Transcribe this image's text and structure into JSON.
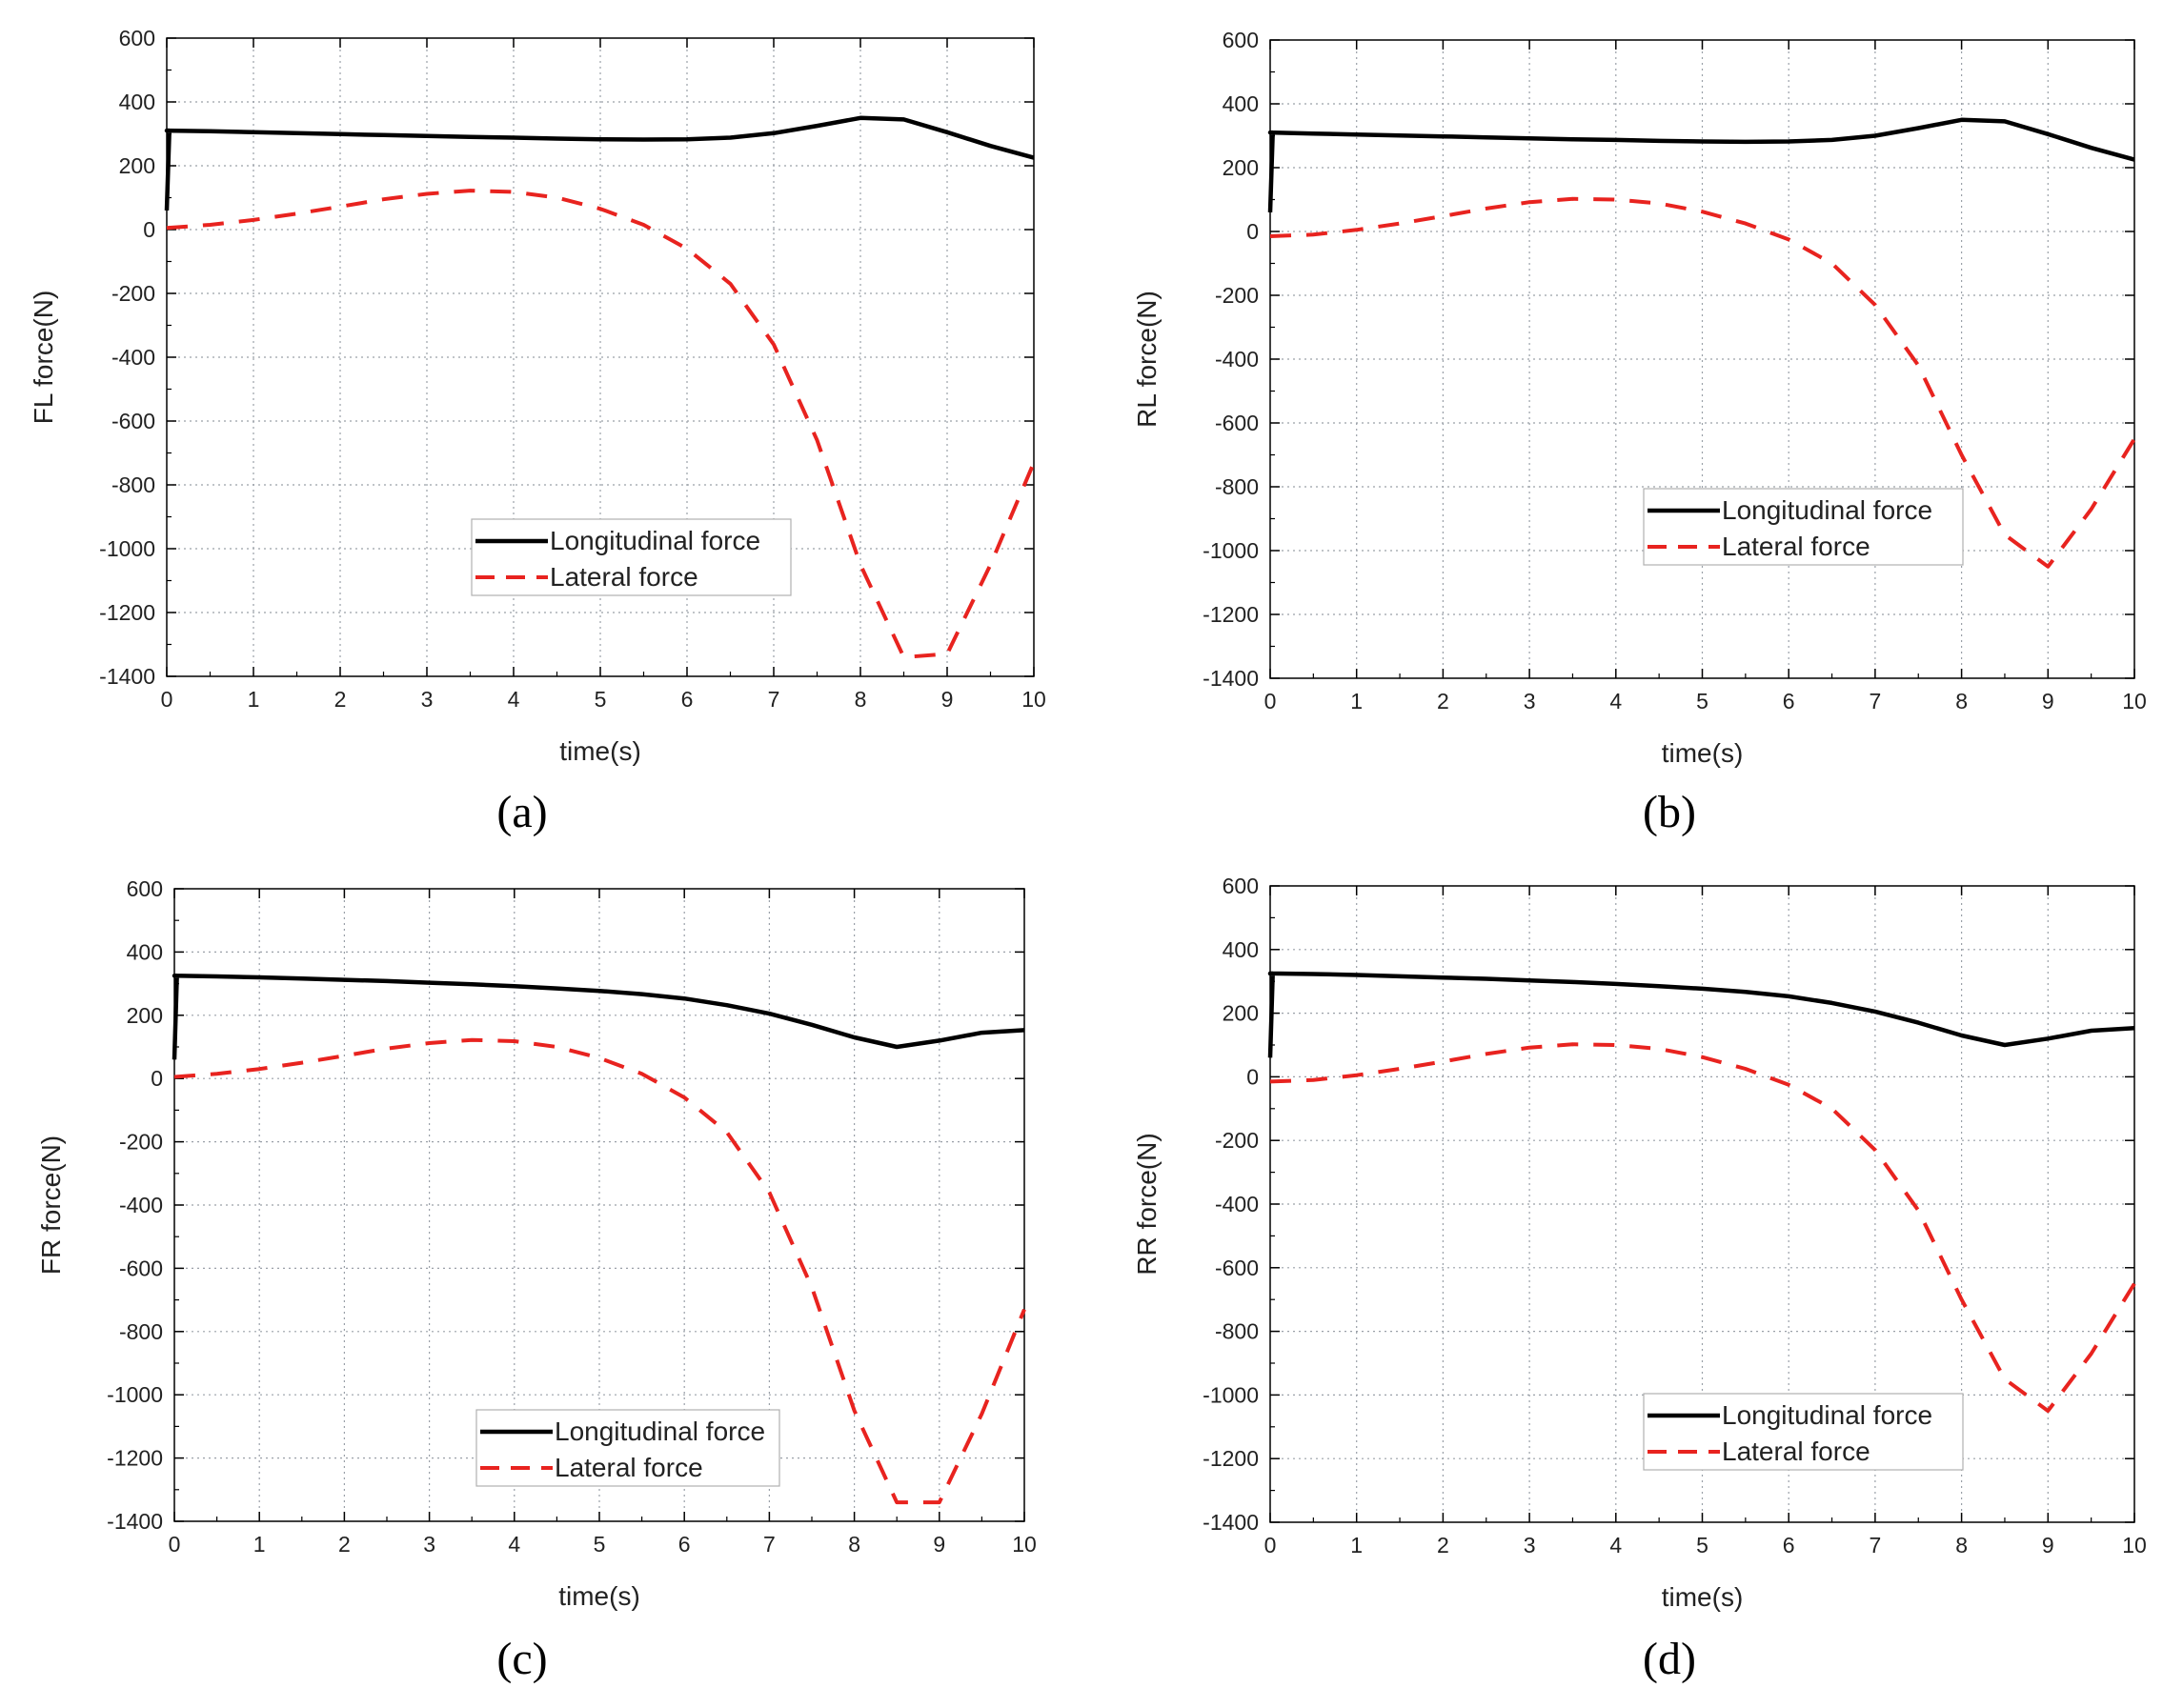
{
  "figure": {
    "panels": [
      "(a)",
      "(b)",
      "(c)",
      "(d)"
    ]
  },
  "colors": {
    "longitudinal": "#000000",
    "lateral": "#e8231f",
    "grid": "#9aa0a8",
    "axis": "#000000"
  },
  "chart_data": [
    {
      "type": "line",
      "panel": "(a)",
      "title": "",
      "xlabel": "time(s)",
      "ylabel": "FL force(N)",
      "xlim": [
        0,
        10
      ],
      "ylim": [
        -1400,
        600
      ],
      "xticks": [
        0,
        1,
        2,
        3,
        4,
        5,
        6,
        7,
        8,
        9,
        10
      ],
      "yticks": [
        600,
        400,
        200,
        0,
        -200,
        -400,
        -600,
        -800,
        -1000,
        -1200,
        -1400
      ],
      "grid": true,
      "legend_position": "center",
      "x": [
        0,
        0.5,
        1,
        1.5,
        2,
        2.5,
        3,
        3.5,
        4,
        4.5,
        5,
        5.5,
        6,
        6.5,
        7,
        7.5,
        8,
        8.5,
        9,
        9.5,
        10
      ],
      "series": [
        {
          "name": "Longitudinal force",
          "style": "solid",
          "x0": 0,
          "y0": 60,
          "values": [
            310,
            308,
            305,
            302,
            299,
            296,
            293,
            290,
            288,
            285,
            283,
            282,
            283,
            288,
            302,
            325,
            350,
            345,
            305,
            262,
            225
          ]
        },
        {
          "name": "Lateral force",
          "style": "dashed",
          "values": [
            5,
            15,
            30,
            50,
            72,
            95,
            112,
            122,
            118,
            100,
            65,
            15,
            -60,
            -170,
            -360,
            -660,
            -1050,
            -1340,
            -1330,
            -1050,
            -730
          ]
        }
      ]
    },
    {
      "type": "line",
      "panel": "(b)",
      "title": "",
      "xlabel": "time(s)",
      "ylabel": "RL force(N)",
      "xlim": [
        0,
        10
      ],
      "ylim": [
        -1400,
        600
      ],
      "xticks": [
        0,
        1,
        2,
        3,
        4,
        5,
        6,
        7,
        8,
        9,
        10
      ],
      "yticks": [
        600,
        400,
        200,
        0,
        -200,
        -400,
        -600,
        -800,
        -1000,
        -1200,
        -1400
      ],
      "grid": true,
      "legend_position": "center-right",
      "x": [
        0,
        0.5,
        1,
        1.5,
        2,
        2.5,
        3,
        3.5,
        4,
        4.5,
        5,
        5.5,
        6,
        6.5,
        7,
        7.5,
        8,
        8.5,
        9,
        9.5,
        10
      ],
      "series": [
        {
          "name": "Longitudinal force",
          "style": "solid",
          "x0": 0,
          "y0": 60,
          "values": [
            310,
            307,
            304,
            301,
            298,
            295,
            292,
            289,
            287,
            284,
            282,
            281,
            282,
            287,
            300,
            324,
            350,
            345,
            305,
            262,
            225
          ]
        },
        {
          "name": "Lateral force",
          "style": "dashed",
          "values": [
            -15,
            -10,
            5,
            25,
            48,
            72,
            92,
            102,
            100,
            88,
            62,
            25,
            -25,
            -100,
            -230,
            -420,
            -700,
            -950,
            -1050,
            -870,
            -650
          ]
        }
      ]
    },
    {
      "type": "line",
      "panel": "(c)",
      "title": "",
      "xlabel": "time(s)",
      "ylabel": "FR force(N)",
      "xlim": [
        0,
        10
      ],
      "ylim": [
        -1400,
        600
      ],
      "xticks": [
        0,
        1,
        2,
        3,
        4,
        5,
        6,
        7,
        8,
        9,
        10
      ],
      "yticks": [
        600,
        400,
        200,
        0,
        -200,
        -400,
        -600,
        -800,
        -1000,
        -1200,
        -1400
      ],
      "grid": true,
      "legend_position": "center",
      "x": [
        0,
        0.5,
        1,
        1.5,
        2,
        2.5,
        3,
        3.5,
        4,
        4.5,
        5,
        5.5,
        6,
        6.5,
        7,
        7.5,
        8,
        8.5,
        9,
        9.5,
        10
      ],
      "series": [
        {
          "name": "Longitudinal force",
          "style": "solid",
          "x0": 0,
          "y0": 60,
          "values": [
            325,
            323,
            320,
            316,
            312,
            308,
            303,
            298,
            292,
            285,
            277,
            267,
            253,
            232,
            205,
            170,
            130,
            100,
            120,
            145,
            153
          ]
        },
        {
          "name": "Lateral force",
          "style": "dashed",
          "values": [
            5,
            15,
            30,
            50,
            72,
            95,
            112,
            122,
            118,
            100,
            65,
            15,
            -60,
            -170,
            -360,
            -660,
            -1050,
            -1340,
            -1340,
            -1060,
            -730
          ]
        }
      ]
    },
    {
      "type": "line",
      "panel": "(d)",
      "title": "",
      "xlabel": "time(s)",
      "ylabel": "RR force(N)",
      "xlim": [
        0,
        10
      ],
      "ylim": [
        -1400,
        600
      ],
      "xticks": [
        0,
        1,
        2,
        3,
        4,
        5,
        6,
        7,
        8,
        9,
        10
      ],
      "yticks": [
        600,
        400,
        200,
        0,
        -200,
        -400,
        -600,
        -800,
        -1000,
        -1200,
        -1400
      ],
      "grid": true,
      "legend_position": "bottom-center",
      "x": [
        0,
        0.5,
        1,
        1.5,
        2,
        2.5,
        3,
        3.5,
        4,
        4.5,
        5,
        5.5,
        6,
        6.5,
        7,
        7.5,
        8,
        8.5,
        9,
        9.5,
        10
      ],
      "series": [
        {
          "name": "Longitudinal force",
          "style": "solid",
          "x0": 0,
          "y0": 60,
          "values": [
            325,
            323,
            320,
            316,
            312,
            308,
            303,
            298,
            292,
            285,
            277,
            267,
            253,
            232,
            205,
            170,
            130,
            100,
            120,
            145,
            153
          ]
        },
        {
          "name": "Lateral force",
          "style": "dashed",
          "values": [
            -15,
            -10,
            5,
            25,
            48,
            72,
            92,
            102,
            100,
            88,
            62,
            25,
            -25,
            -100,
            -230,
            -420,
            -700,
            -950,
            -1050,
            -870,
            -650
          ]
        }
      ]
    }
  ]
}
